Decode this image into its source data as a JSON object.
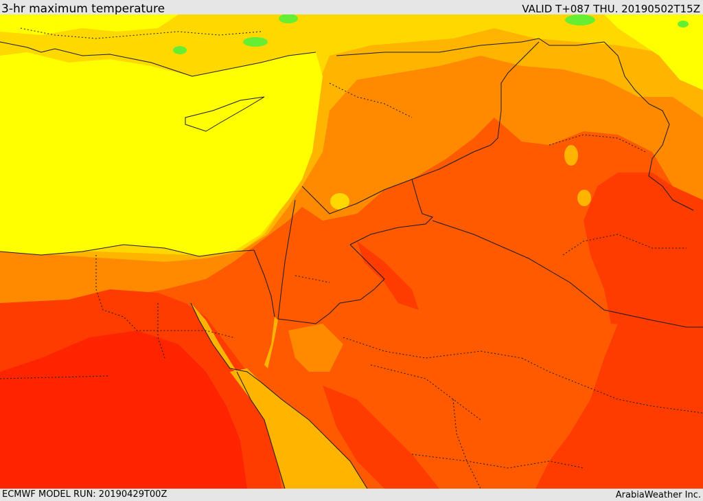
{
  "header": {
    "title": "3-hr maximum temperature",
    "valid": "VALID T+087 THU. 20190502T15Z"
  },
  "footer": {
    "model_run": "ECMWF MODEL RUN: 20190429T00Z",
    "credit": "ArabiaWeather Inc."
  },
  "colors": {
    "yellow": "#ffff00",
    "yellow_orange": "#ffd800",
    "amber": "#ffb400",
    "orange": "#ff8a00",
    "orange_red": "#ff5a00",
    "red_orange": "#ff3c00",
    "red": "#ff2400",
    "green": "#66ee33",
    "border": "#1a1a1a"
  }
}
